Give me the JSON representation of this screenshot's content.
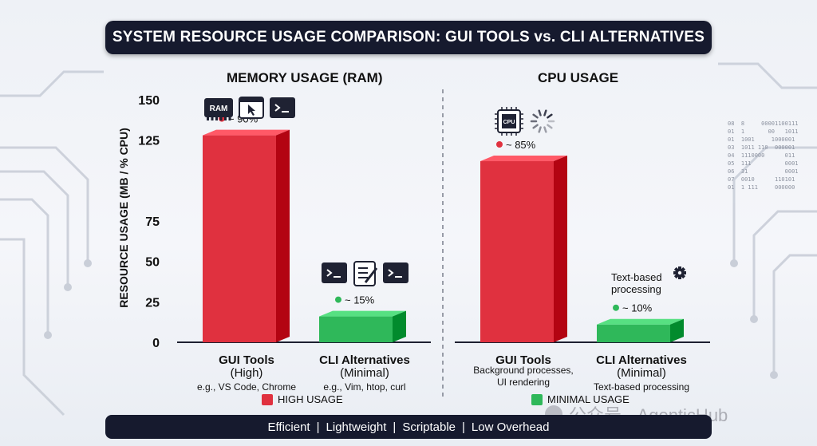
{
  "title": "SYSTEM RESOURCE USAGE COMPARISON: GUI TOOLS vs. CLI ALTERNATIVES",
  "legend": [
    {
      "label": "HIGH USAGE",
      "color": "#e0313f"
    },
    {
      "label": "MINIMAL USAGE",
      "color": "#2fb85a"
    }
  ],
  "bottom_bar": [
    "Efficient",
    "Lightweight",
    "Scriptable",
    "Low Overhead"
  ],
  "watermark": "公众号 · AgenticHub",
  "binary_lines": [
    "08  8     00001100111",
    "01  1       00   1011",
    "01  1001     1000001",
    "03  1011 110  000001",
    "04  1110000      011",
    "05  111          0001",
    "06  31           0001",
    "07  0010      110101",
    "01  1 111     000000"
  ],
  "chart_data": [
    {
      "type": "bar",
      "title": "MEMORY USAGE (RAM)",
      "ylabel": "RESOURCE USAGE (MB / % CPU)",
      "ylim": [
        0,
        150
      ],
      "yticks": [
        0,
        25,
        50,
        75,
        125,
        150
      ],
      "categories": [
        {
          "name": "GUI Tools",
          "sub": "(High)",
          "note": "e.g., VS Code, Chrome"
        },
        {
          "name": "CLI Alternatives",
          "sub": "(Minimal)",
          "note": "e.g., Vim, htop, curl"
        }
      ],
      "values": [
        128,
        16
      ],
      "annotations": [
        "~ 90%",
        "~ 15%"
      ],
      "colors": [
        "#e0313f",
        "#2fb85a"
      ],
      "icons": [
        [
          "ram-chip-icon",
          "cursor-window-icon",
          "terminal-icon"
        ],
        [
          "terminal-icon",
          "notepad-icon",
          "terminal-icon"
        ]
      ],
      "ram_icon_label": "RAM"
    },
    {
      "type": "bar",
      "title": "CPU USAGE",
      "ylim": [
        0,
        150
      ],
      "categories": [
        {
          "name": "GUI Tools",
          "sub": "",
          "note": "Background processes, UI rendering"
        },
        {
          "name": "CLI Alternatives",
          "sub": "(Minimal)",
          "note": "Text-based processing"
        }
      ],
      "values": [
        112,
        11
      ],
      "annotations": [
        "~ 85%",
        "~ 10%"
      ],
      "colors": [
        "#e0313f",
        "#2fb85a"
      ],
      "side_label": "Text-based processing",
      "icons": [
        [
          "cpu-chip-icon",
          "spinner-icon"
        ],
        [
          "gear-icon"
        ]
      ],
      "cpu_icon_label": "CPU"
    }
  ]
}
